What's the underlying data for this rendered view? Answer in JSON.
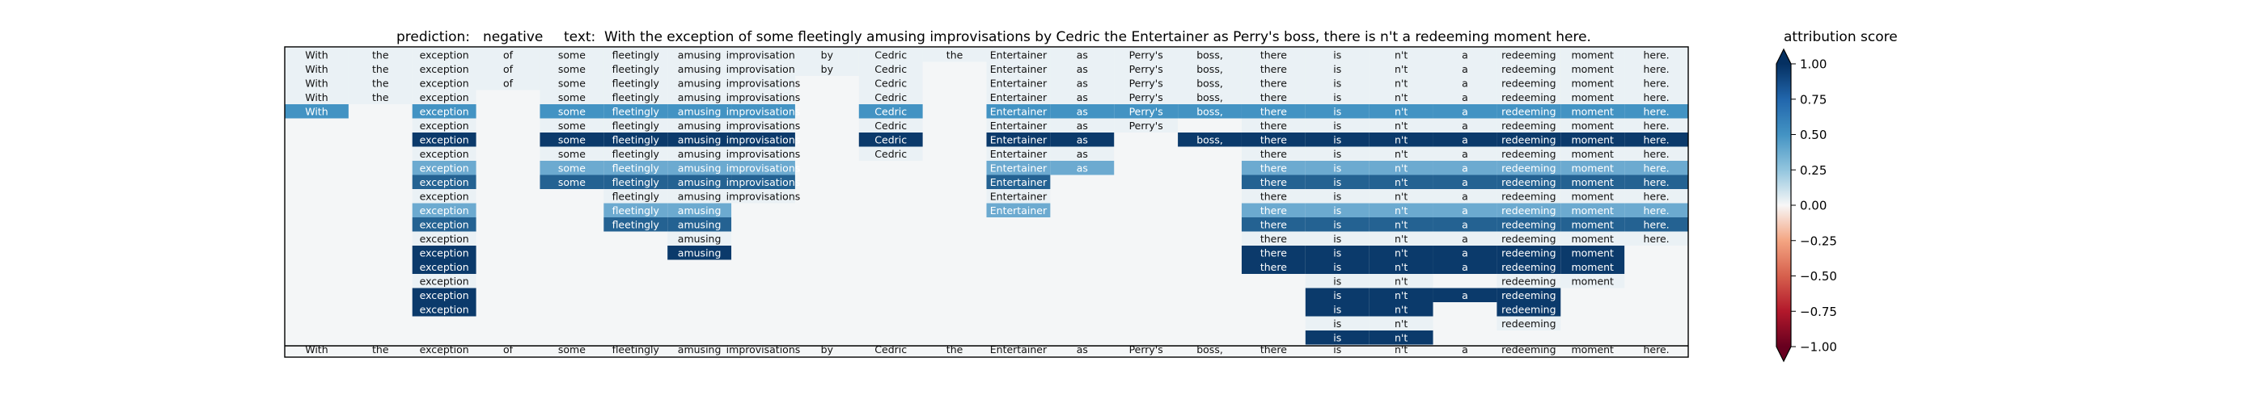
{
  "chart_data": {
    "type": "heatmap",
    "title": {
      "prediction_label": "prediction:",
      "prediction_value": "negative",
      "text_label": "text:",
      "text_value": "With the exception of some fleetingly amusing improvisations by Cedric the Entertainer as Perry's boss, there is n't a redeeming moment here."
    },
    "tokens": [
      "With",
      "the",
      "exception",
      "of",
      "some",
      "fleetingly",
      "amusing",
      "improvisations",
      "by",
      "Cedric",
      "the",
      "Entertainer",
      "as",
      "Perry's",
      "boss,",
      "there",
      "is",
      "n't",
      "a",
      "redeeming",
      "moment",
      "here."
    ],
    "rows": [
      {
        "visible": [
          0,
          1,
          2,
          3,
          4,
          5,
          6,
          7,
          8,
          9,
          10,
          11,
          12,
          13,
          14,
          15,
          16,
          17,
          18,
          19,
          20,
          21
        ],
        "scores": [
          0.05,
          0.05,
          0.05,
          0.05,
          0.05,
          0.05,
          0.05,
          0.05,
          0.05,
          0.05,
          0.05,
          0.05,
          0.05,
          0.05,
          0.05,
          0.05,
          0.05,
          0.05,
          0.05,
          0.05,
          0.05,
          0.05
        ]
      },
      {
        "visible": [
          0,
          1,
          2,
          3,
          4,
          5,
          6,
          7,
          8,
          9,
          11,
          12,
          13,
          14,
          15,
          16,
          17,
          18,
          19,
          20,
          21
        ],
        "scores": [
          0.05,
          0.05,
          0.05,
          0.05,
          0.05,
          0.05,
          0.05,
          0.05,
          0.05,
          0.05,
          0.05,
          0.05,
          0.05,
          0.05,
          0.05,
          0.05,
          0.05,
          0.05,
          0.05,
          0.05,
          0.05,
          0.05
        ]
      },
      {
        "visible": [
          0,
          1,
          2,
          3,
          4,
          5,
          6,
          7,
          9,
          11,
          12,
          13,
          14,
          15,
          16,
          17,
          18,
          19,
          20,
          21
        ],
        "scores": [
          0.05,
          0.05,
          0.05,
          0.05,
          0.05,
          0.05,
          0.05,
          0.05,
          0.05,
          0.05,
          0.05,
          0.05,
          0.05,
          0.05,
          0.05,
          0.05,
          0.05,
          0.05,
          0.05,
          0.05,
          0.05,
          0.05
        ]
      },
      {
        "visible": [
          0,
          1,
          2,
          4,
          5,
          6,
          7,
          9,
          11,
          12,
          13,
          14,
          15,
          16,
          17,
          18,
          19,
          20,
          21
        ],
        "scores": [
          0.05,
          0.05,
          0.05,
          0.05,
          0.05,
          0.05,
          0.05,
          0.05,
          0.05,
          0.05,
          0.05,
          0.05,
          0.05,
          0.05,
          0.05,
          0.05,
          0.05,
          0.05,
          0.05,
          0.05,
          0.05,
          0.05
        ]
      },
      {
        "visible": [
          0,
          2,
          4,
          5,
          6,
          7,
          9,
          11,
          12,
          13,
          14,
          15,
          16,
          17,
          18,
          19,
          20,
          21
        ],
        "scores": [
          0.5,
          0.05,
          0.5,
          0.05,
          0.5,
          0.5,
          0.5,
          0.5,
          0.05,
          0.5,
          0.05,
          0.5,
          0.5,
          0.5,
          0.5,
          0.5,
          0.5,
          0.5,
          0.5,
          0.5,
          0.5,
          0.5
        ]
      },
      {
        "visible": [
          2,
          4,
          5,
          6,
          7,
          9,
          11,
          12,
          13,
          15,
          16,
          17,
          18,
          19,
          20,
          21
        ],
        "scores": [
          0.05,
          0.05,
          0.05,
          0.05,
          0.05,
          0.05,
          0.05,
          0.05,
          0.05,
          0.05,
          0.05,
          0.05,
          0.05,
          0.05,
          0.05,
          0.05,
          0.05,
          0.05,
          0.05,
          0.05,
          0.05,
          0.05
        ]
      },
      {
        "visible": [
          2,
          4,
          5,
          6,
          7,
          9,
          11,
          12,
          14,
          15,
          16,
          17,
          18,
          19,
          20,
          21
        ],
        "scores": [
          0.05,
          0.05,
          0.95,
          0.05,
          0.95,
          0.95,
          0.95,
          0.95,
          0.05,
          0.95,
          0.05,
          0.95,
          0.95,
          0.05,
          0.95,
          0.95,
          0.95,
          0.95,
          0.95,
          0.95,
          0.95,
          0.95
        ]
      },
      {
        "visible": [
          2,
          4,
          5,
          6,
          7,
          9,
          11,
          12,
          15,
          16,
          17,
          18,
          19,
          20,
          21
        ],
        "scores": [
          0.05,
          0.05,
          0.05,
          0.05,
          0.05,
          0.05,
          0.05,
          0.05,
          0.05,
          0.05,
          0.05,
          0.05,
          0.05,
          0.05,
          0.05,
          0.05,
          0.05,
          0.05,
          0.05,
          0.05,
          0.05,
          0.05
        ]
      },
      {
        "visible": [
          2,
          4,
          5,
          6,
          7,
          11,
          12,
          15,
          16,
          17,
          18,
          19,
          20,
          21
        ],
        "scores": [
          0.05,
          0.05,
          0.4,
          0.05,
          0.4,
          0.4,
          0.4,
          0.4,
          0.05,
          0.05,
          0.05,
          0.4,
          0.4,
          0.05,
          0.05,
          0.4,
          0.4,
          0.4,
          0.4,
          0.4,
          0.4,
          0.4
        ]
      },
      {
        "visible": [
          2,
          4,
          5,
          6,
          7,
          11,
          15,
          16,
          17,
          18,
          19,
          20,
          21
        ],
        "scores": [
          0.05,
          0.05,
          0.75,
          0.05,
          0.75,
          0.75,
          0.75,
          0.75,
          0.05,
          0.05,
          0.05,
          0.75,
          0.05,
          0.05,
          0.05,
          0.75,
          0.75,
          0.75,
          0.75,
          0.75,
          0.75,
          0.75
        ]
      },
      {
        "visible": [
          2,
          5,
          6,
          7,
          11,
          15,
          16,
          17,
          18,
          19,
          20,
          21
        ],
        "scores": [
          0.05,
          0.05,
          0.05,
          0.05,
          0.05,
          0.05,
          0.05,
          0.05,
          0.05,
          0.05,
          0.05,
          0.05,
          0.05,
          0.05,
          0.05,
          0.05,
          0.05,
          0.05,
          0.05,
          0.05,
          0.05,
          0.05
        ]
      },
      {
        "visible": [
          2,
          5,
          6,
          11,
          15,
          16,
          17,
          18,
          19,
          20,
          21
        ],
        "scores": [
          0.05,
          0.05,
          0.4,
          0.05,
          0.05,
          0.4,
          0.4,
          0.05,
          0.05,
          0.05,
          0.05,
          0.4,
          0.05,
          0.05,
          0.05,
          0.4,
          0.4,
          0.4,
          0.4,
          0.4,
          0.4,
          0.4
        ]
      },
      {
        "visible": [
          2,
          5,
          6,
          15,
          16,
          17,
          18,
          19,
          20,
          21
        ],
        "scores": [
          0.05,
          0.05,
          0.75,
          0.05,
          0.05,
          0.75,
          0.75,
          0.05,
          0.05,
          0.05,
          0.05,
          0.05,
          0.05,
          0.05,
          0.05,
          0.75,
          0.75,
          0.75,
          0.75,
          0.75,
          0.75,
          0.75
        ]
      },
      {
        "visible": [
          2,
          6,
          15,
          16,
          17,
          18,
          19,
          20,
          21
        ],
        "scores": [
          0.05,
          0.05,
          0.05,
          0.05,
          0.05,
          0.05,
          0.05,
          0.05,
          0.05,
          0.05,
          0.05,
          0.05,
          0.05,
          0.05,
          0.05,
          0.05,
          0.05,
          0.05,
          0.05,
          0.05,
          0.05,
          0.05
        ]
      },
      {
        "visible": [
          2,
          6,
          15,
          16,
          17,
          18,
          19,
          20
        ],
        "scores": [
          0.05,
          0.05,
          0.95,
          0.05,
          0.05,
          0.05,
          0.95,
          0.05,
          0.05,
          0.05,
          0.05,
          0.05,
          0.05,
          0.05,
          0.05,
          0.95,
          0.95,
          0.95,
          0.95,
          0.95,
          0.95,
          0.05
        ]
      },
      {
        "visible": [
          2,
          15,
          16,
          17,
          18,
          19,
          20
        ],
        "scores": [
          0.05,
          0.05,
          0.95,
          0.05,
          0.05,
          0.05,
          0.05,
          0.05,
          0.05,
          0.05,
          0.05,
          0.05,
          0.05,
          0.05,
          0.05,
          0.95,
          0.95,
          0.95,
          0.95,
          0.95,
          0.95,
          0.05
        ]
      },
      {
        "visible": [
          2,
          16,
          17,
          19,
          20
        ],
        "scores": [
          0.05,
          0.05,
          0.05,
          0.05,
          0.05,
          0.05,
          0.05,
          0.05,
          0.05,
          0.05,
          0.05,
          0.05,
          0.05,
          0.05,
          0.05,
          0.05,
          0.05,
          0.05,
          0.05,
          0.05,
          0.05,
          0.05
        ]
      },
      {
        "visible": [
          2,
          16,
          17,
          18,
          19
        ],
        "scores": [
          0.05,
          0.05,
          0.95,
          0.05,
          0.05,
          0.05,
          0.05,
          0.05,
          0.05,
          0.05,
          0.05,
          0.05,
          0.05,
          0.05,
          0.05,
          0.05,
          0.95,
          0.95,
          0.95,
          0.95,
          0.05,
          0.05
        ]
      },
      {
        "visible": [
          2,
          16,
          17,
          19
        ],
        "scores": [
          0.05,
          0.05,
          0.95,
          0.05,
          0.05,
          0.05,
          0.05,
          0.05,
          0.05,
          0.05,
          0.05,
          0.05,
          0.05,
          0.05,
          0.05,
          0.05,
          0.95,
          0.95,
          0.05,
          0.95,
          0.05,
          0.05
        ]
      },
      {
        "visible": [
          16,
          17,
          19
        ],
        "scores": [
          0.05,
          0.05,
          0.05,
          0.05,
          0.05,
          0.05,
          0.05,
          0.05,
          0.05,
          0.05,
          0.05,
          0.05,
          0.05,
          0.05,
          0.05,
          0.05,
          0.05,
          0.05,
          0.05,
          0.05,
          0.05,
          0.05
        ]
      },
      {
        "visible": [
          16,
          17
        ],
        "scores": [
          0.05,
          0.05,
          0.05,
          0.05,
          0.05,
          0.05,
          0.05,
          0.05,
          0.05,
          0.05,
          0.05,
          0.05,
          0.05,
          0.05,
          0.05,
          0.05,
          0.95,
          0.95,
          0.05,
          0.05,
          0.05,
          0.05
        ]
      }
    ],
    "bottom_row": [
      "With",
      "the",
      "exception",
      "of",
      "some",
      "fleetingly",
      "amusing",
      "improvisations",
      "by",
      "Cedric",
      "the",
      "Entertainer",
      "as",
      "Perry's",
      "boss,",
      "there",
      "is",
      "n't",
      "a",
      "redeeming",
      "moment",
      "here."
    ],
    "colorbar": {
      "label": "attribution score",
      "ticks": [
        "1.00",
        "0.75",
        "0.50",
        "0.25",
        "0.00",
        "−0.25",
        "−0.50",
        "−0.75",
        "−1.00"
      ],
      "tick_values": [
        1.0,
        0.75,
        0.5,
        0.25,
        0.0,
        -0.25,
        -0.5,
        -0.75,
        -1.0
      ],
      "range": [
        -1,
        1
      ],
      "colormap": "RdBu",
      "colors": {
        "negative_end": "#67001f",
        "neg_mid": "#d6604d",
        "neg_light": "#fddbc7",
        "zero": "#f7f7f7",
        "pos_light": "#d1e5f0",
        "pos_mid": "#4393c3",
        "positive_end": "#053061"
      }
    }
  }
}
